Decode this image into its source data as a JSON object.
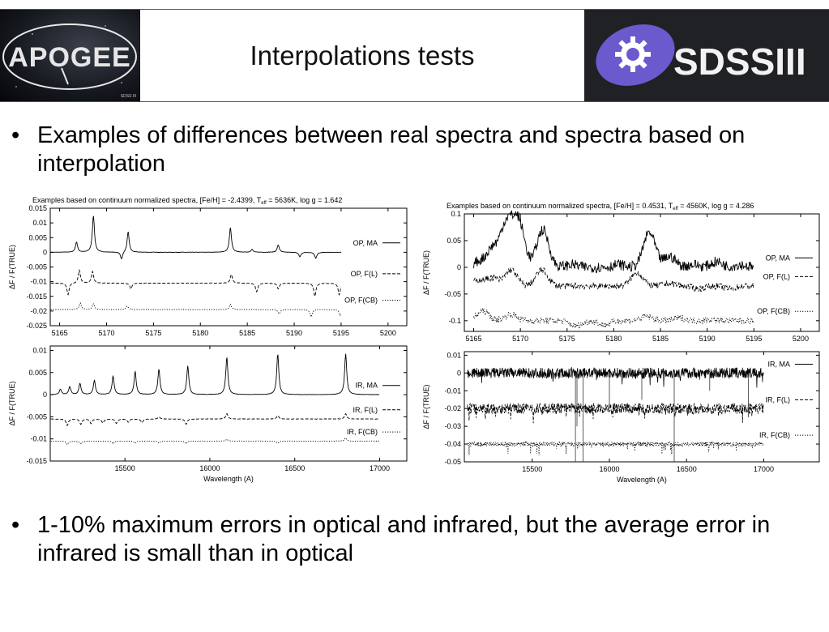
{
  "header": {
    "title": "Interpolations tests",
    "left_logo_text": "APOGEE",
    "right_logo_text": "SDSSIII"
  },
  "bullets": [
    "Examples of differences between real spectra and spectra based on interpolation",
    "1-10% maximum errors in optical and infrared, but the average error in infrared is small than in optical"
  ],
  "colors": {
    "background": "#ffffff",
    "header_border": "#555555",
    "sdss_purple": "#6a5acd",
    "sdss_panel": "#202125"
  },
  "chart_data": [
    {
      "type": "line",
      "panel": "left-optical",
      "title": "Examples based on continuum normalized spectra, [Fe/H] = -2.4399, T",
      "title_sub": "eff",
      "title_tail": " = 5636K, log g = 1.642",
      "ylabel": "ΔF / F(TRUE)",
      "xlim": [
        5164,
        5202
      ],
      "ylim": [
        -0.025,
        0.015
      ],
      "xticks": [
        5165,
        5170,
        5175,
        5180,
        5185,
        5190,
        5195,
        5200
      ],
      "yticks": [
        0.015,
        0.01,
        0.005,
        0,
        -0.005,
        -0.01,
        -0.015,
        -0.02,
        -0.025
      ],
      "x_end": 5195,
      "series": [
        {
          "name": "OP, MA",
          "style": "solid",
          "offset": 0,
          "lines": [
            [
              5166.8,
              0.0035
            ],
            [
              5168.6,
              0.0125
            ],
            [
              5172.3,
              0.007
            ],
            [
              5183.2,
              0.0085
            ],
            [
              5185.5,
              0.001
            ],
            [
              5188.3,
              0.0025
            ],
            [
              5171.6,
              -0.0025
            ],
            [
              5190.6,
              -0.0015
            ],
            [
              5192.3,
              -0.002
            ]
          ]
        },
        {
          "name": "OP, F(L)",
          "style": "dashed",
          "offset": -0.0105,
          "lines": [
            [
              5167.1,
              0.0045
            ],
            [
              5168.5,
              0.004
            ],
            [
              5165.9,
              -0.004
            ],
            [
              5172.6,
              -0.002
            ],
            [
              5183.3,
              0.003
            ],
            [
              5186.0,
              -0.003
            ],
            [
              5188.3,
              -0.002
            ],
            [
              5192.2,
              -0.0045
            ],
            [
              5194.8,
              -0.004
            ]
          ]
        },
        {
          "name": "OP, F(CB)",
          "style": "dotted",
          "offset": -0.0195,
          "lines": [
            [
              5167.2,
              0.0022
            ],
            [
              5168.6,
              0.002
            ],
            [
              5172.2,
              0.0012
            ],
            [
              5183.2,
              0.0018
            ],
            [
              5188.4,
              -0.0015
            ],
            [
              5191.8,
              -0.0025
            ],
            [
              5194.9,
              -0.002
            ]
          ]
        }
      ]
    },
    {
      "type": "line",
      "panel": "left-infrared",
      "ylabel": "ΔF / F(TRUE)",
      "xlabel": "Wavelength (A)",
      "xlim": [
        15060,
        17160
      ],
      "ylim": [
        -0.015,
        0.011
      ],
      "xticks": [
        15500,
        16000,
        16500,
        17000
      ],
      "yticks": [
        0.01,
        0.005,
        0,
        -0.005,
        -0.01,
        -0.015
      ],
      "x_end": 17000,
      "series": [
        {
          "name": "IR, MA",
          "style": "solid",
          "offset": 0,
          "lines": [
            [
              15120,
              0.0012
            ],
            [
              15175,
              0.0018
            ],
            [
              15235,
              0.0025
            ],
            [
              15320,
              0.0032
            ],
            [
              15430,
              0.0042
            ],
            [
              15560,
              0.0052
            ],
            [
              15700,
              0.0058
            ],
            [
              15870,
              0.0065
            ],
            [
              16100,
              0.0085
            ],
            [
              16400,
              0.0092
            ],
            [
              16800,
              0.0092
            ]
          ]
        },
        {
          "name": "IR, F(L)",
          "style": "dashed",
          "offset": -0.0055,
          "lines": [
            [
              15160,
              -0.0015
            ],
            [
              15240,
              -0.0012
            ],
            [
              15300,
              -0.001
            ],
            [
              15370,
              -0.0009
            ],
            [
              15450,
              -0.001
            ],
            [
              15520,
              -0.0007
            ],
            [
              15600,
              -0.0008
            ],
            [
              15700,
              0.0005
            ],
            [
              15860,
              -0.0012
            ],
            [
              16100,
              0.0012
            ],
            [
              16400,
              0.0008
            ],
            [
              16800,
              0.0012
            ]
          ]
        },
        {
          "name": "IR, F(CB)",
          "style": "dotted",
          "offset": -0.0105,
          "lines": [
            [
              15160,
              -0.0008
            ],
            [
              15240,
              -0.0006
            ],
            [
              15430,
              -0.0006
            ],
            [
              15560,
              -0.0005
            ],
            [
              15700,
              -0.0004
            ],
            [
              15860,
              -0.0006
            ],
            [
              16100,
              0.0004
            ],
            [
              16400,
              -0.0005
            ],
            [
              16800,
              0.0007
            ]
          ]
        }
      ]
    },
    {
      "type": "line",
      "panel": "right-optical",
      "title": "Examples based on continuum normalized spectra, [Fe/H] = 0.4531, T",
      "title_sub": "eff",
      "title_tail": " = 4560K, log g = 4.286",
      "ylabel": "ΔF / F(TRUE)",
      "xlim": [
        5164,
        5202
      ],
      "ylim": [
        -0.12,
        0.1
      ],
      "xticks": [
        5165,
        5170,
        5175,
        5180,
        5185,
        5190,
        5195,
        5200
      ],
      "yticks": [
        0.1,
        0.05,
        0,
        -0.05,
        -0.1
      ],
      "x_end": 5195,
      "series": [
        {
          "name": "OP, MA",
          "style": "solid",
          "offset": 0,
          "bumps": [
            [
              5165.5,
              0.01
            ],
            [
              5167.0,
              0.035
            ],
            [
              5168.5,
              0.08
            ],
            [
              5169.8,
              0.085
            ],
            [
              5172.4,
              0.07
            ],
            [
              5175.5,
              0.005
            ],
            [
              5178.5,
              0.0
            ],
            [
              5180.5,
              0.005
            ],
            [
              5183.8,
              0.065
            ],
            [
              5186.0,
              0.02
            ],
            [
              5188.5,
              0.005
            ],
            [
              5191.0,
              0.01
            ],
            [
              5193.5,
              0.005
            ]
          ]
        },
        {
          "name": "OP, F(L)",
          "style": "dashed",
          "offset": -0.035,
          "bumps": [
            [
              5165.5,
              0.01
            ],
            [
              5167.0,
              0.015
            ],
            [
              5169.0,
              0.03
            ],
            [
              5172.3,
              0.03
            ],
            [
              5176.0,
              0.0
            ],
            [
              5179.0,
              0.0
            ],
            [
              5182.5,
              0.025
            ],
            [
              5186.0,
              0.005
            ],
            [
              5189.0,
              -0.005
            ],
            [
              5192.5,
              -0.005
            ]
          ]
        },
        {
          "name": "OP, F(CB)",
          "style": "dotted",
          "offset": -0.1,
          "bumps": [
            [
              5166.0,
              0.018
            ],
            [
              5169.0,
              0.012
            ],
            [
              5172.5,
              0.0
            ],
            [
              5176.0,
              -0.01
            ],
            [
              5179.0,
              -0.008
            ],
            [
              5183.5,
              0.008
            ],
            [
              5187.0,
              0.005
            ],
            [
              5190.5,
              0.002
            ],
            [
              5194.0,
              0.0
            ]
          ]
        }
      ]
    },
    {
      "type": "line",
      "panel": "right-infrared",
      "ylabel": "ΔF / F(TRUE)",
      "xlabel": "Wavelength (A)",
      "xlim": [
        15060,
        17360
      ],
      "ylim": [
        -0.05,
        0.012
      ],
      "xticks": [
        15500,
        16000,
        16500,
        17000
      ],
      "yticks": [
        0.01,
        0,
        -0.01,
        -0.02,
        -0.03,
        -0.04,
        -0.05
      ],
      "x_end": 17000,
      "series": [
        {
          "name": "IR, MA",
          "style": "solid",
          "offset": 0,
          "noise": 0.003
        },
        {
          "name": "IR, F(L)",
          "style": "dashed",
          "offset": -0.02,
          "noise": 0.003
        },
        {
          "name": "IR, F(CB)",
          "style": "dotted",
          "offset": -0.04,
          "noise": 0.0012
        }
      ],
      "drops": [
        [
          15780,
          -0.05
        ],
        [
          15830,
          -0.05
        ],
        [
          16420,
          -0.05
        ],
        [
          15790,
          -0.03
        ],
        [
          16000,
          -0.02
        ],
        [
          16210,
          -0.015
        ],
        [
          16650,
          -0.01
        ],
        [
          16900,
          -0.025
        ]
      ]
    }
  ]
}
